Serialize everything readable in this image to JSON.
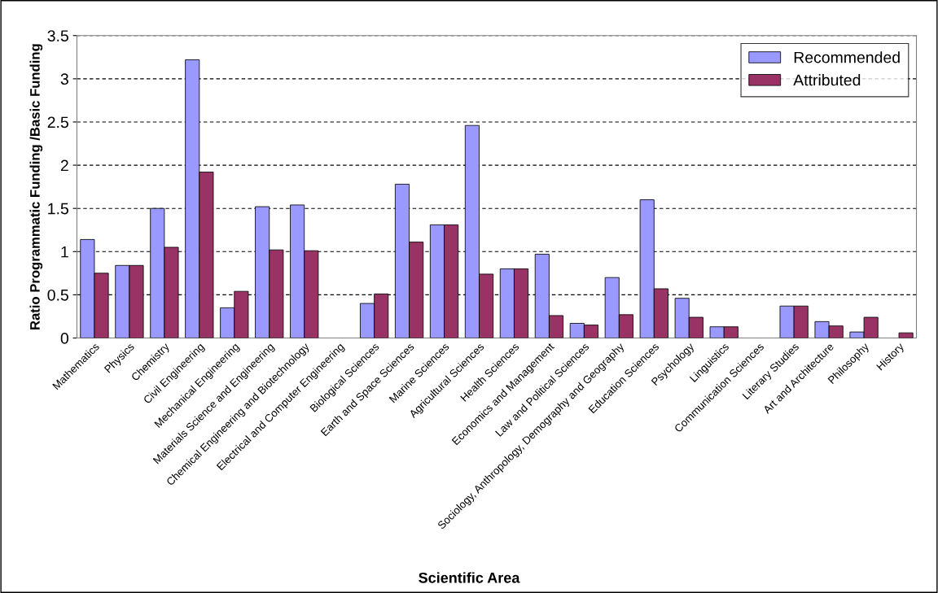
{
  "chart_data": {
    "type": "bar",
    "xlabel": "Scientific Area",
    "ylabel": "Ratio Programmatic Funding /Basic Funding",
    "categories": [
      "Mathematics",
      "Physics",
      "Chemistry",
      "Civil Engineering",
      "Mechanical Engineering",
      "Materials Science and Engineering",
      "Chemical Engineering and Biotechnology",
      "Electrical and Computer Engineering",
      "Biological Sciences",
      "Earth and Space Sciences",
      "Marine Sciences",
      "Agricultural Sciences",
      "Health Sciences",
      "Economics and Management",
      "Law and Political Sciences",
      "Sociology, Anthropology, Demography and Geography",
      "Education Sciences",
      "Psychology",
      "Linguistics",
      "Communication Sciences",
      "Literary Studies",
      "Art and Architecture",
      "Philosophy",
      "History"
    ],
    "series": [
      {
        "name": "Recommended",
        "color": "#9999ff",
        "values": [
          1.14,
          0.84,
          1.5,
          3.22,
          0.35,
          1.52,
          1.54,
          null,
          0.4,
          1.78,
          1.31,
          2.46,
          0.8,
          0.97,
          0.17,
          0.7,
          1.6,
          0.46,
          0.13,
          null,
          0.37,
          0.19,
          0.07,
          null
        ]
      },
      {
        "name": "Attributed",
        "color": "#993366",
        "values": [
          0.75,
          0.84,
          1.05,
          1.92,
          0.54,
          1.02,
          1.01,
          null,
          0.51,
          1.11,
          1.31,
          0.74,
          0.8,
          0.26,
          0.15,
          0.27,
          0.57,
          0.24,
          0.13,
          null,
          0.37,
          0.14,
          0.24,
          0.06
        ]
      }
    ],
    "ylim": [
      0,
      3.5
    ],
    "yticks": [
      0,
      0.5,
      1,
      1.5,
      2,
      2.5,
      3,
      3.5
    ],
    "grid": "y",
    "legend": "top right"
  }
}
